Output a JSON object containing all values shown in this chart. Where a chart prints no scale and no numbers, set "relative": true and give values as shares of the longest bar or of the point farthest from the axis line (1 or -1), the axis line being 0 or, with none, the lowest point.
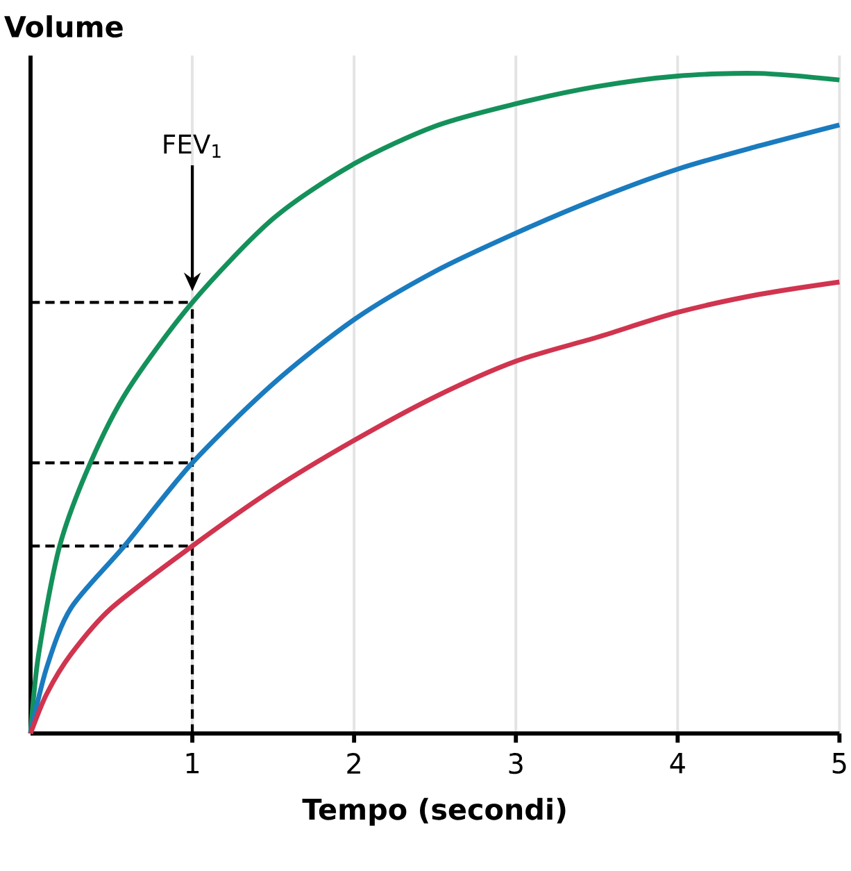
{
  "chart_data": {
    "type": "line",
    "xlabel": "Tempo (secondi)",
    "ylabel": "Volume",
    "relative": true,
    "xlim": [
      0,
      5
    ],
    "xticks": [
      1,
      2,
      3,
      4,
      5
    ],
    "grid": "x",
    "marker": "none",
    "line_style": "solid",
    "series": [
      {
        "color": "#14915a",
        "x": [
          0,
          0.05,
          0.18,
          0.37,
          0.6,
          1,
          1.5,
          2,
          2.5,
          3,
          3.5,
          4,
          4.5,
          5
        ],
        "values": [
          0,
          0.12,
          0.284,
          0.41,
          0.52,
          0.653,
          0.78,
          0.863,
          0.92,
          0.954,
          0.98,
          0.996,
          1.0,
          0.99
        ]
      },
      {
        "color": "#1a7bbf",
        "x": [
          0,
          0.1,
          0.25,
          0.58,
          1,
          1.5,
          2,
          2.5,
          3,
          3.5,
          4,
          4.5,
          5
        ],
        "values": [
          0,
          0.1,
          0.19,
          0.284,
          0.41,
          0.53,
          0.627,
          0.7,
          0.758,
          0.81,
          0.855,
          0.89,
          0.922
        ]
      },
      {
        "color": "#d0344e",
        "x": [
          0,
          0.1,
          0.25,
          0.5,
          1,
          1.5,
          2,
          2.5,
          3,
          3.5,
          4,
          4.5,
          5
        ],
        "values": [
          0,
          0.06,
          0.12,
          0.19,
          0.284,
          0.37,
          0.444,
          0.51,
          0.564,
          0.6,
          0.638,
          0.665,
          0.684
        ]
      }
    ],
    "ref_lines": [
      {
        "axis": "x",
        "value": 1,
        "line_style": "dashed"
      },
      {
        "axis": "y",
        "value": 0.653,
        "line_style": "dashed"
      },
      {
        "axis": "y",
        "value": 0.41,
        "line_style": "dashed"
      },
      {
        "axis": "y",
        "value": 0.284,
        "line_style": "dashed"
      }
    ],
    "annotations": [
      "FEV$_{1}$"
    ]
  }
}
